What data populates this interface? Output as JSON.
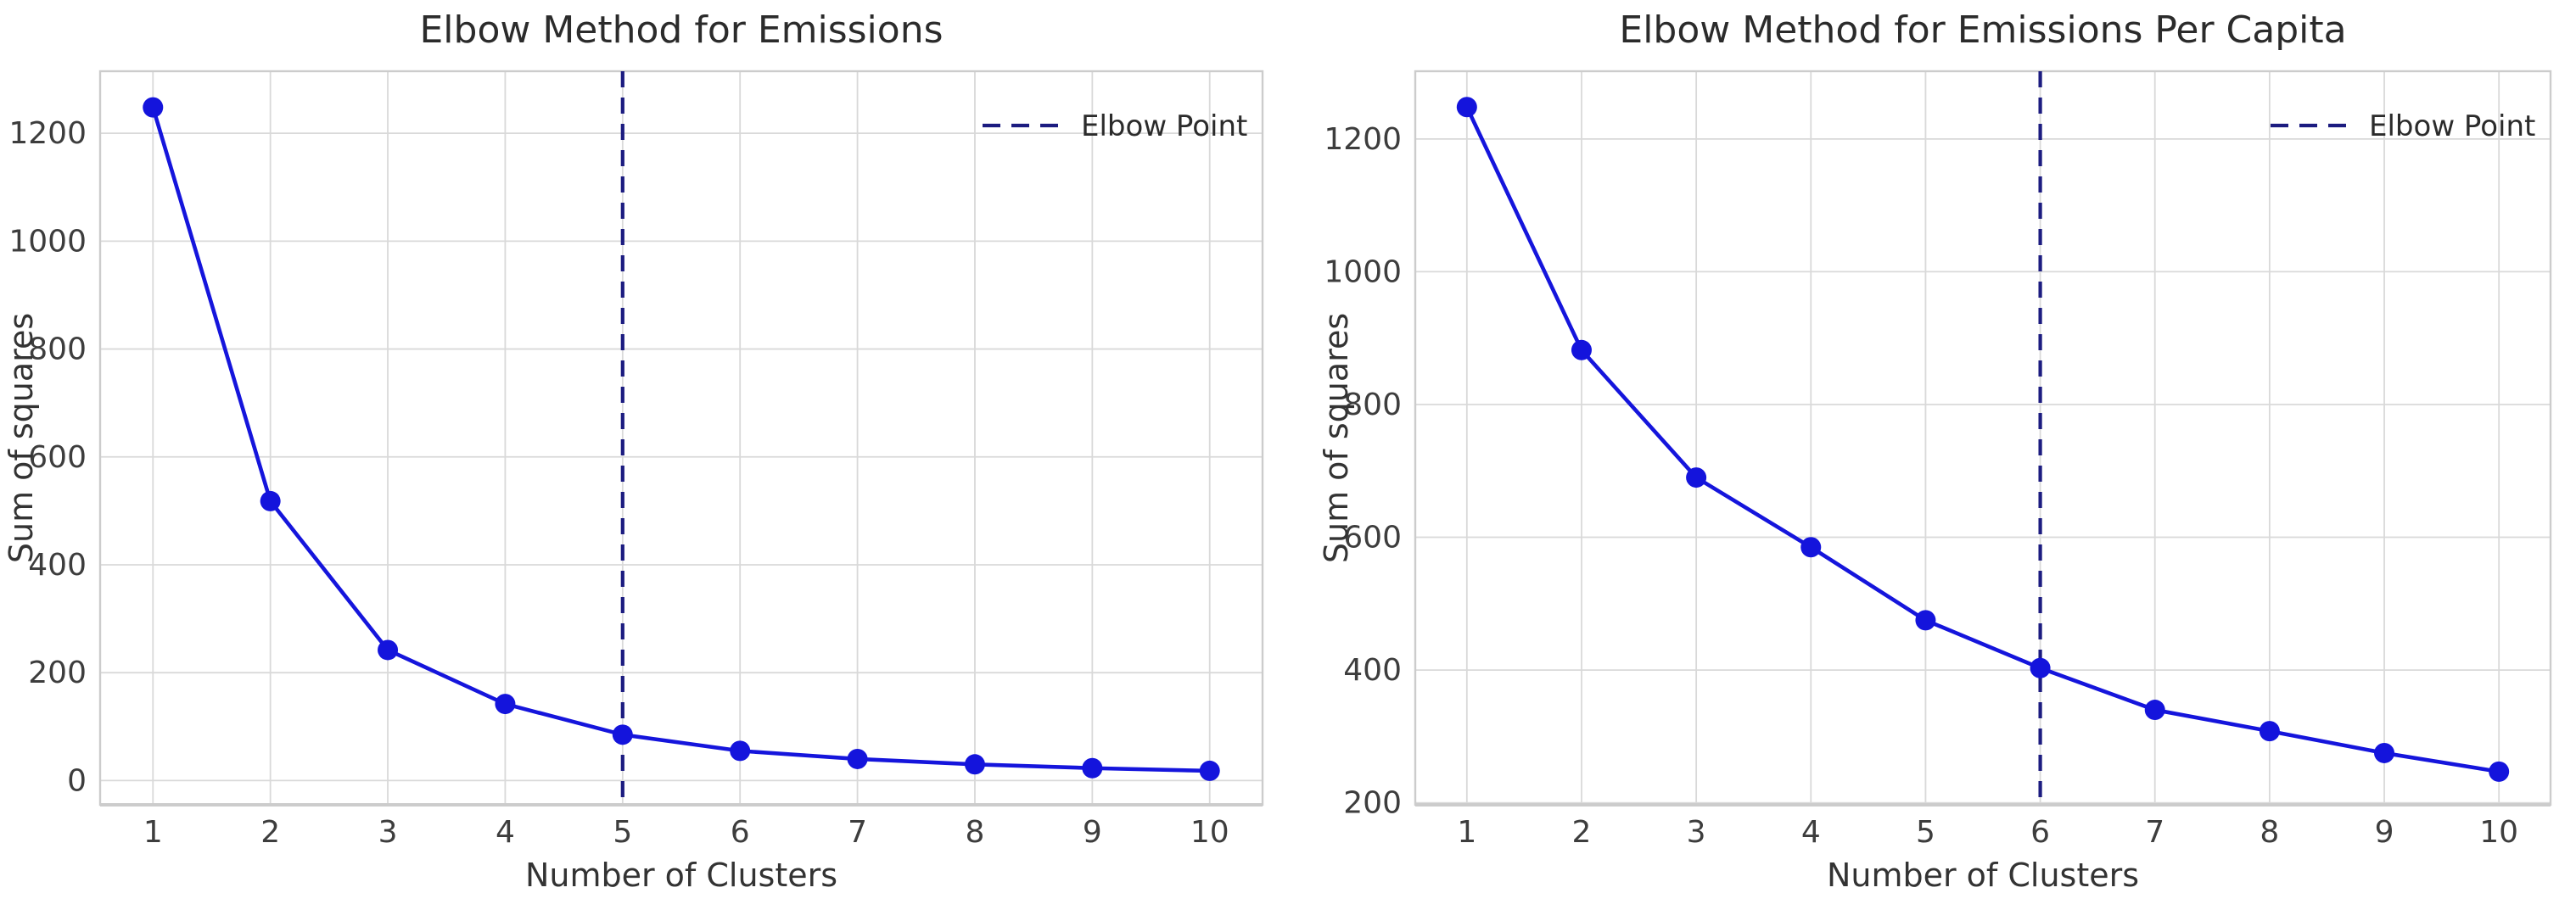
{
  "colors": {
    "line": "#1515dc",
    "marker": "#1414dc",
    "elbow_line": "#1c1c80",
    "grid": "#d9d9d9",
    "spine": "#cccccc",
    "title_text": "#2b2b2b",
    "tick_text": "#3d3d3d",
    "label_text": "#333333",
    "background": "#ffffff"
  },
  "chart_data": [
    {
      "type": "line",
      "title": "Elbow Method for Emissions",
      "xlabel": "Number of Clusters",
      "ylabel": "Sum of squares",
      "legend": {
        "entries": [
          "Elbow Point"
        ],
        "position": "upper right"
      },
      "x": [
        1,
        2,
        3,
        4,
        5,
        6,
        7,
        8,
        9,
        10
      ],
      "values": [
        1248,
        518,
        242,
        142,
        85,
        55,
        40,
        30,
        23,
        18
      ],
      "elbow_point_x": 5,
      "xticks": [
        1,
        2,
        3,
        4,
        5,
        6,
        7,
        8,
        9,
        10
      ],
      "yticks": [
        0,
        200,
        400,
        600,
        800,
        1000,
        1200
      ],
      "xlim": [
        0.55,
        10.45
      ],
      "ylim": [
        -45,
        1315
      ],
      "grid": true
    },
    {
      "type": "line",
      "title": "Elbow Method for Emissions Per Capita",
      "xlabel": "Number of Clusters",
      "ylabel": "Sum of squares",
      "legend": {
        "entries": [
          "Elbow Point"
        ],
        "position": "upper right"
      },
      "x": [
        1,
        2,
        3,
        4,
        5,
        6,
        7,
        8,
        9,
        10
      ],
      "values": [
        1248,
        882,
        690,
        585,
        475,
        403,
        340,
        308,
        275,
        247
      ],
      "elbow_point_x": 6,
      "xticks": [
        1,
        2,
        3,
        4,
        5,
        6,
        7,
        8,
        9,
        10
      ],
      "yticks": [
        200,
        400,
        600,
        800,
        1000,
        1200
      ],
      "xlim": [
        0.55,
        10.45
      ],
      "ylim": [
        197,
        1302
      ],
      "grid": true
    }
  ]
}
